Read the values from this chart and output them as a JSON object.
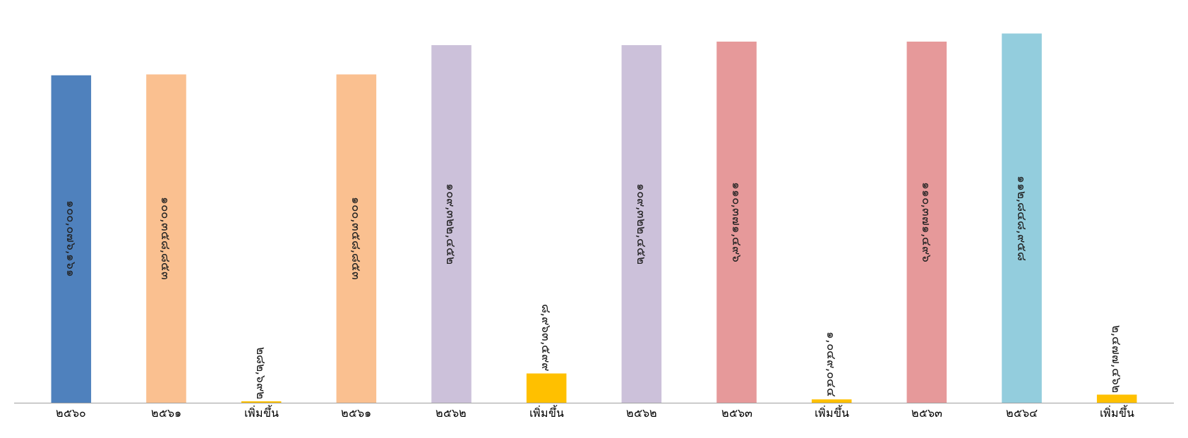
{
  "chart_data": {
    "type": "bar",
    "categories": [
      "๒๕๖๐",
      "๒๕๖๑",
      "เพิ่มขึ้น",
      "๒๕๖๑",
      "๒๕๖๒",
      "เพิ่มขึ้น",
      "๒๕๖๒",
      "๒๕๖๓",
      "เพิ่มขึ้น",
      "๒๕๖๓",
      "๒๕๖๔",
      "เพิ่มขึ้น"
    ],
    "values": [
      100076161,
      100358853,
      282692,
      100358853,
      109322452,
      8963599,
      109322452,
      110371496,
      1049044,
      110371496,
      112848958,
      2477462
    ],
    "value_labels": [
      "๑๐๐,๐๗๖,๑๖๑",
      "๑๐๐,๓๕๘,๘๕๓",
      "๒๘๒,๖๙๒",
      "๑๐๐,๓๕๘,๘๕๓",
      "๑๐๙,๓๒๒,๔๕๒",
      "๘,๙๖๓,๕๙๙",
      "๑๐๙,๓๒๒,๔๕๒",
      "๑๑๐,๓๗๑,๔๙๖",
      "๑,๐๔๙,๐๔๔",
      "๑๑๐,๓๗๑,๔๙๖",
      "๑๑๒,๘๔๘,๙๕๘",
      "๒,๔๗๗,๔๖๒"
    ],
    "colors": [
      "#4f81bd",
      "#fac090",
      "#ffc000",
      "#fac090",
      "#ccc1da",
      "#ffc000",
      "#ccc1da",
      "#e6999a",
      "#ffc000",
      "#e6999a",
      "#93cddd",
      "#ffc000"
    ],
    "tick_labels": "x"
  }
}
